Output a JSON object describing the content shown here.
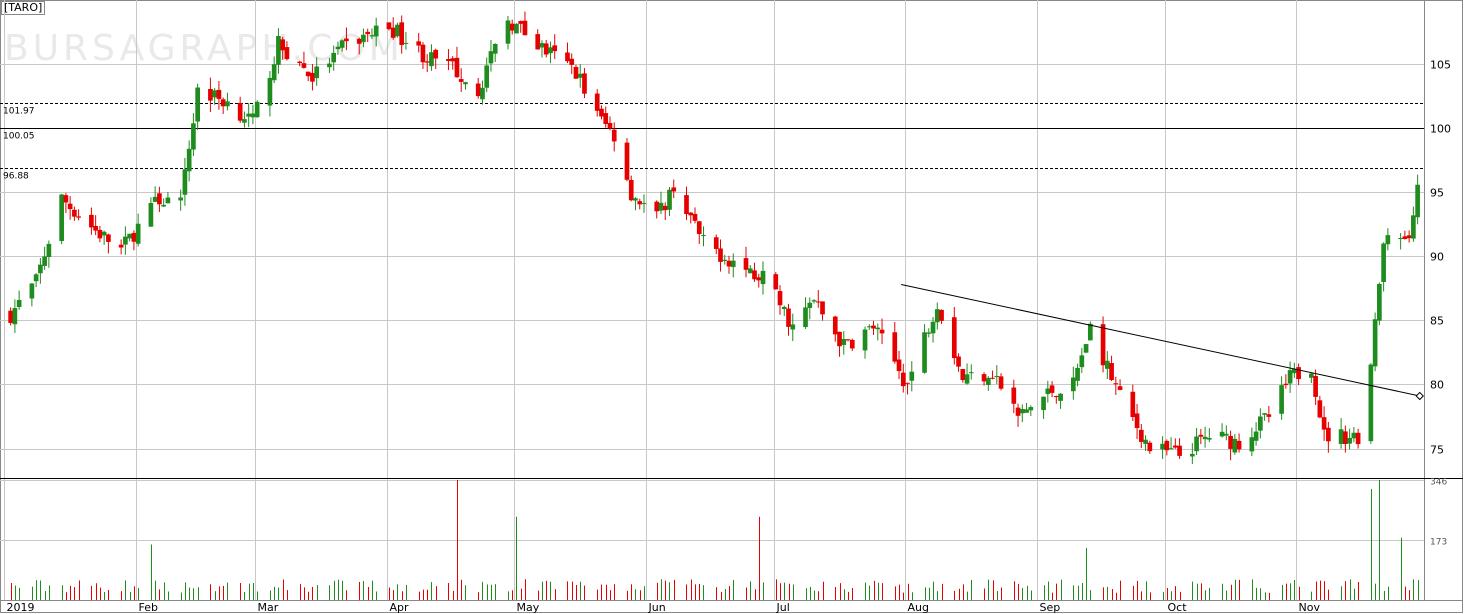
{
  "chart_data": {
    "type": "candlestick",
    "ticker": "[TARO]",
    "watermark": "BURSAGRAPH.COM",
    "y_ticks": [
      75,
      80,
      85,
      90,
      95,
      100,
      105
    ],
    "y_range": [
      72.7,
      110
    ],
    "volume_ticks": [
      "173",
      "346"
    ],
    "volume_range": [
      0,
      346
    ],
    "months": [
      "2019",
      "Feb",
      "Mar",
      "Apr",
      "May",
      "Jun",
      "Jul",
      "Aug",
      "Sep",
      "Oct",
      "Nov"
    ],
    "horizontal_lines": [
      {
        "label": "101.97",
        "value": 101.97,
        "style": "dashed"
      },
      {
        "label": "100.05",
        "value": 100.05,
        "style": "solid"
      },
      {
        "label": "96.88",
        "value": 96.88,
        "style": "dashed"
      }
    ],
    "trendline": {
      "start": {
        "date": "2019-07-31",
        "value": 87.8
      },
      "end": {
        "date": "2019-11-30",
        "value": 79.1
      }
    },
    "waypoints": [
      [
        "2019-01-02",
        85.5
      ],
      [
        "2019-01-08",
        88
      ],
      [
        "2019-01-14",
        94.5
      ],
      [
        "2019-01-22",
        92
      ],
      [
        "2019-01-28",
        90.5
      ],
      [
        "2019-02-06",
        94.5
      ],
      [
        "2019-02-11",
        94
      ],
      [
        "2019-02-15",
        103
      ],
      [
        "2019-02-22",
        102
      ],
      [
        "2019-02-28",
        100.5
      ],
      [
        "2019-03-06",
        106.5
      ],
      [
        "2019-03-14",
        104
      ],
      [
        "2019-03-22",
        106.5
      ],
      [
        "2019-04-01",
        108
      ],
      [
        "2019-04-10",
        105.5
      ],
      [
        "2019-04-17",
        104.5
      ],
      [
        "2019-04-22",
        103
      ],
      [
        "2019-04-29",
        108.5
      ],
      [
        "2019-05-08",
        106
      ],
      [
        "2019-05-15",
        104.5
      ],
      [
        "2019-05-20",
        101
      ],
      [
        "2019-05-24",
        99.5
      ],
      [
        "2019-05-28",
        95
      ],
      [
        "2019-06-03",
        93
      ],
      [
        "2019-06-07",
        95.5
      ],
      [
        "2019-06-14",
        91
      ],
      [
        "2019-06-24",
        89
      ],
      [
        "2019-06-28",
        88.5
      ],
      [
        "2019-07-05",
        84.5
      ],
      [
        "2019-07-10",
        86.5
      ],
      [
        "2019-07-17",
        83
      ],
      [
        "2019-07-24",
        84.5
      ],
      [
        "2019-08-01",
        80
      ],
      [
        "2019-08-08",
        86.5
      ],
      [
        "2019-08-14",
        80.5
      ],
      [
        "2019-08-21",
        81
      ],
      [
        "2019-08-27",
        77.5
      ],
      [
        "2019-09-04",
        79.5
      ],
      [
        "2019-09-09",
        80
      ],
      [
        "2019-09-13",
        84.5
      ],
      [
        "2019-09-20",
        79
      ],
      [
        "2019-09-27",
        75
      ],
      [
        "2019-10-04",
        74.5
      ],
      [
        "2019-10-11",
        76
      ],
      [
        "2019-10-18",
        75.5
      ],
      [
        "2019-10-25",
        77.5
      ],
      [
        "2019-10-30",
        80.5
      ],
      [
        "2019-11-04",
        81.5
      ],
      [
        "2019-11-07",
        76
      ],
      [
        "2019-11-15",
        76
      ],
      [
        "2019-11-18",
        81.5
      ],
      [
        "2019-11-21",
        91
      ],
      [
        "2019-11-27",
        91.5
      ],
      [
        "2019-11-29",
        96
      ]
    ],
    "colors": {
      "up": "#1f8c1f",
      "down": "#e60000",
      "grid": "#c8c8c8",
      "text": "#333333"
    },
    "volume_spikes": [
      [
        "2019-02-04",
        160
      ],
      [
        "2019-04-17",
        346
      ],
      [
        "2019-05-01",
        240
      ],
      [
        "2019-06-27",
        240
      ],
      [
        "2019-09-12",
        150
      ],
      [
        "2019-11-18",
        320
      ],
      [
        "2019-11-20",
        600
      ],
      [
        "2019-11-25",
        180
      ]
    ]
  }
}
